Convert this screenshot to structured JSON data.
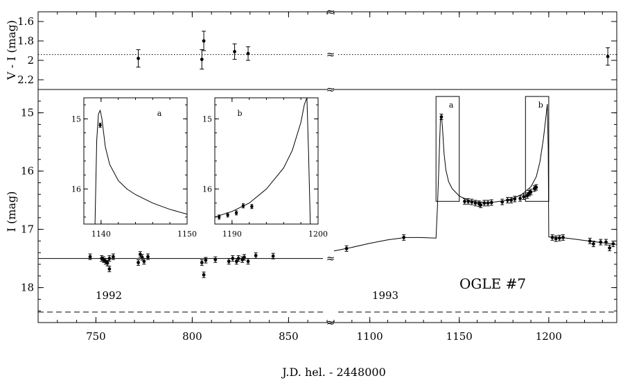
{
  "chart_data": {
    "type": "scatter",
    "xlabel": "J.D. hel. - 2448000",
    "annotation": "OGLE #7",
    "season_labels": [
      "1992",
      "1993"
    ],
    "break_mark": "≈",
    "top_panel": {
      "ylabel": "V - I (mag)",
      "ylim": [
        2.3,
        1.5
      ],
      "yticks": [
        "1.6",
        "1.8",
        "2",
        "2.2"
      ],
      "mean_color": 1.94,
      "seg1": {
        "xlim": [
          720,
          870
        ],
        "points": [
          [
            772,
            1.98,
            0.09
          ],
          [
            805,
            1.99,
            0.1
          ],
          [
            806,
            1.8,
            0.1
          ],
          [
            822,
            1.91,
            0.08
          ],
          [
            829,
            1.93,
            0.07
          ]
        ]
      },
      "seg2": {
        "xlim": [
          1080,
          1238
        ],
        "points": [
          [
            1233,
            1.96,
            0.09
          ]
        ]
      }
    },
    "bottom_panel": {
      "ylabel": "I (mag)",
      "ylim": [
        18.6,
        14.6
      ],
      "yticks": [
        "15",
        "16",
        "17",
        "18"
      ],
      "baseline_mag": 17.5,
      "dashed_mag": 18.42,
      "seg1": {
        "xlim": [
          720,
          870
        ],
        "xticks": [
          "750",
          "800",
          "850"
        ],
        "points": [
          [
            747,
            17.47
          ],
          [
            753,
            17.5
          ],
          [
            754,
            17.52
          ],
          [
            755,
            17.55
          ],
          [
            756,
            17.58
          ],
          [
            757,
            17.5
          ],
          [
            757,
            17.68
          ],
          [
            759,
            17.47
          ],
          [
            772,
            17.57
          ],
          [
            773,
            17.43
          ],
          [
            774,
            17.48
          ],
          [
            775,
            17.55
          ],
          [
            777,
            17.47
          ],
          [
            805,
            17.57
          ],
          [
            806,
            17.78
          ],
          [
            807,
            17.53
          ],
          [
            812,
            17.52
          ],
          [
            819,
            17.55
          ],
          [
            821,
            17.5
          ],
          [
            823,
            17.55
          ],
          [
            824,
            17.5
          ],
          [
            826,
            17.52
          ],
          [
            827,
            17.48
          ],
          [
            829,
            17.55
          ],
          [
            833,
            17.45
          ],
          [
            842,
            17.46
          ]
        ]
      },
      "seg2": {
        "xlim": [
          1080,
          1238
        ],
        "xticks": [
          "1100",
          "1150",
          "1200"
        ],
        "points": [
          [
            1087,
            17.33
          ],
          [
            1119,
            17.14
          ],
          [
            1140,
            15.07
          ],
          [
            1153,
            16.52
          ],
          [
            1155,
            16.52
          ],
          [
            1157,
            16.53
          ],
          [
            1159,
            16.55
          ],
          [
            1161,
            16.56
          ],
          [
            1162,
            16.58
          ],
          [
            1164,
            16.55
          ],
          [
            1166,
            16.55
          ],
          [
            1168,
            16.54
          ],
          [
            1174,
            16.53
          ],
          [
            1177,
            16.5
          ],
          [
            1179,
            16.5
          ],
          [
            1181,
            16.48
          ],
          [
            1184,
            16.47
          ],
          [
            1186,
            16.44
          ],
          [
            1188,
            16.42
          ],
          [
            1189,
            16.38
          ],
          [
            1190,
            16.36
          ],
          [
            1192,
            16.3
          ],
          [
            1193,
            16.28
          ],
          [
            1202,
            17.14
          ],
          [
            1204,
            17.16
          ],
          [
            1206,
            17.15
          ],
          [
            1208,
            17.14
          ],
          [
            1223,
            17.2
          ],
          [
            1225,
            17.25
          ],
          [
            1229,
            17.22
          ],
          [
            1232,
            17.22
          ],
          [
            1234,
            17.32
          ],
          [
            1236,
            17.25
          ]
        ],
        "model": [
          [
            1080,
            17.37
          ],
          [
            1090,
            17.31
          ],
          [
            1100,
            17.24
          ],
          [
            1110,
            17.18
          ],
          [
            1120,
            17.14
          ],
          [
            1128,
            17.14
          ],
          [
            1137,
            17.15
          ],
          [
            1137.8,
            16.6
          ],
          [
            1138.5,
            16.0
          ],
          [
            1139.0,
            15.5
          ],
          [
            1139.5,
            15.1
          ],
          [
            1140,
            15.04
          ],
          [
            1140.6,
            15.25
          ],
          [
            1141.5,
            15.7
          ],
          [
            1142.5,
            15.98
          ],
          [
            1144,
            16.18
          ],
          [
            1146,
            16.3
          ],
          [
            1150,
            16.43
          ],
          [
            1155,
            16.5
          ],
          [
            1160,
            16.53
          ],
          [
            1165,
            16.54
          ],
          [
            1170,
            16.53
          ],
          [
            1175,
            16.51
          ],
          [
            1180,
            16.47
          ],
          [
            1185,
            16.4
          ],
          [
            1190,
            16.27
          ],
          [
            1193,
            16.1
          ],
          [
            1195,
            15.85
          ],
          [
            1197,
            15.45
          ],
          [
            1198.5,
            15.05
          ],
          [
            1199.2,
            14.85
          ],
          [
            1199.7,
            15.6
          ],
          [
            1200,
            17.13
          ],
          [
            1205,
            17.14
          ],
          [
            1210,
            17.15
          ],
          [
            1220,
            17.19
          ],
          [
            1230,
            17.23
          ],
          [
            1238,
            17.26
          ]
        ],
        "boxes": [
          {
            "label": "a",
            "x": [
              1137,
              1150
            ],
            "mag": [
              14.72,
              16.52
            ]
          },
          {
            "label": "b",
            "x": [
              1187,
              1200
            ],
            "mag": [
              14.72,
              16.52
            ]
          }
        ]
      }
    },
    "insets": [
      {
        "label": "a",
        "xlim": [
          1138,
          1150
        ],
        "ylim": [
          16.5,
          14.7
        ],
        "xticks": [
          "1140",
          "1150"
        ],
        "yticks": [
          "15",
          "16"
        ],
        "points": [
          [
            1139.9,
            15.09
          ]
        ],
        "model": [
          [
            1139.3,
            16.5
          ],
          [
            1139.5,
            15.3
          ],
          [
            1139.7,
            14.93
          ],
          [
            1139.9,
            14.88
          ],
          [
            1140.1,
            15.0
          ],
          [
            1140.5,
            15.4
          ],
          [
            1141,
            15.65
          ],
          [
            1142,
            15.88
          ],
          [
            1143,
            16.0
          ],
          [
            1144,
            16.08
          ],
          [
            1146,
            16.2
          ],
          [
            1148,
            16.29
          ],
          [
            1150,
            16.36
          ]
        ]
      },
      {
        "label": "b",
        "xlim": [
          1188,
          1200
        ],
        "ylim": [
          16.5,
          14.7
        ],
        "xticks": [
          "1190",
          "1200"
        ],
        "yticks": [
          "15",
          "16"
        ],
        "points": [
          [
            1188.5,
            16.4
          ],
          [
            1189.5,
            16.37
          ],
          [
            1190.5,
            16.34
          ],
          [
            1191.3,
            16.24
          ],
          [
            1192.3,
            16.25
          ]
        ],
        "model": [
          [
            1188,
            16.4
          ],
          [
            1190,
            16.32
          ],
          [
            1192,
            16.2
          ],
          [
            1194,
            16.0
          ],
          [
            1196,
            15.7
          ],
          [
            1197,
            15.45
          ],
          [
            1198,
            15.05
          ],
          [
            1198.4,
            14.8
          ],
          [
            1198.7,
            14.7
          ],
          [
            1198.9,
            15.5
          ],
          [
            1199.1,
            16.5
          ]
        ]
      }
    ]
  }
}
